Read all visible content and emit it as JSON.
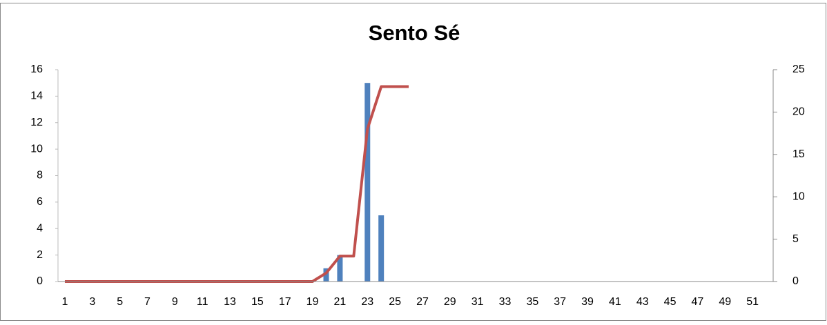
{
  "chart_data": {
    "type": "bar-line",
    "title": "Sento Sé",
    "categories": [
      "1",
      null,
      "3",
      null,
      "5",
      null,
      "7",
      null,
      "9",
      null,
      "11",
      null,
      "13",
      null,
      "15",
      null,
      "17",
      null,
      "19",
      null,
      "21",
      null,
      "23",
      null,
      "25",
      null,
      "27",
      null,
      "29",
      null,
      "31",
      null,
      "33",
      null,
      "35",
      null,
      "37",
      null,
      "39",
      null,
      "41",
      null,
      "43",
      null,
      "45",
      null,
      "47",
      null,
      "49",
      null,
      "51",
      null
    ],
    "series": [
      {
        "type": "bar",
        "color": "#4f81bd",
        "values": [
          0,
          0,
          0,
          0,
          0,
          0,
          0,
          0,
          0,
          0,
          0,
          0,
          0,
          0,
          0,
          0,
          0,
          0,
          0,
          1,
          2,
          0,
          15,
          5,
          0,
          0,
          0,
          0,
          0,
          0,
          0,
          0,
          0,
          0,
          0,
          0,
          0,
          0,
          0,
          0,
          0,
          0,
          0,
          0,
          0,
          0,
          0,
          0,
          0,
          0,
          0,
          0
        ]
      },
      {
        "type": "line",
        "axis": "y2",
        "color": "#c0504d",
        "values": [
          0,
          0,
          0,
          0,
          0,
          0,
          0,
          0,
          0,
          0,
          0,
          0,
          0,
          0,
          0,
          0,
          0,
          0,
          0,
          1,
          3,
          3,
          18,
          23,
          23,
          23,
          null,
          null,
          null,
          null,
          null,
          null,
          null,
          null,
          null,
          null,
          null,
          null,
          null,
          null,
          null,
          null,
          null,
          null,
          null,
          null,
          null,
          null,
          null,
          null,
          null,
          null
        ]
      }
    ],
    "ylim": [
      0,
      16
    ],
    "yticks": [
      0,
      2,
      4,
      6,
      8,
      10,
      12,
      14,
      16
    ],
    "y2lim": [
      0,
      25
    ],
    "y2ticks": [
      0,
      5,
      10,
      15,
      20,
      25
    ],
    "grid": false
  }
}
